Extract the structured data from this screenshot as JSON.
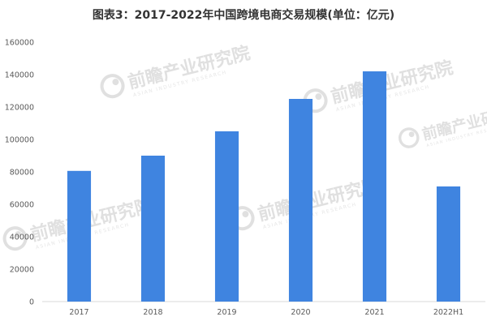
{
  "chart_data": {
    "type": "bar",
    "title": "图表3：2017-2022年中国跨境电商交易规模(单位：亿元)",
    "categories": [
      "2017",
      "2018",
      "2019",
      "2020",
      "2021",
      "2022H1"
    ],
    "values": [
      80600,
      90000,
      105000,
      125000,
      142000,
      71000
    ],
    "yticks": [
      0,
      20000,
      40000,
      60000,
      80000,
      100000,
      120000,
      140000,
      160000
    ],
    "ylim": [
      0,
      160000
    ],
    "xlabel": "",
    "ylabel": "",
    "grid": false,
    "bar_color": "#3f84e0",
    "axis_color": "#d9d9d9"
  },
  "watermark": {
    "text": "前瞻产业研究院",
    "subtext": "ASIAN INDUSTRY RESEARCH",
    "color": "#c8c8c8"
  }
}
